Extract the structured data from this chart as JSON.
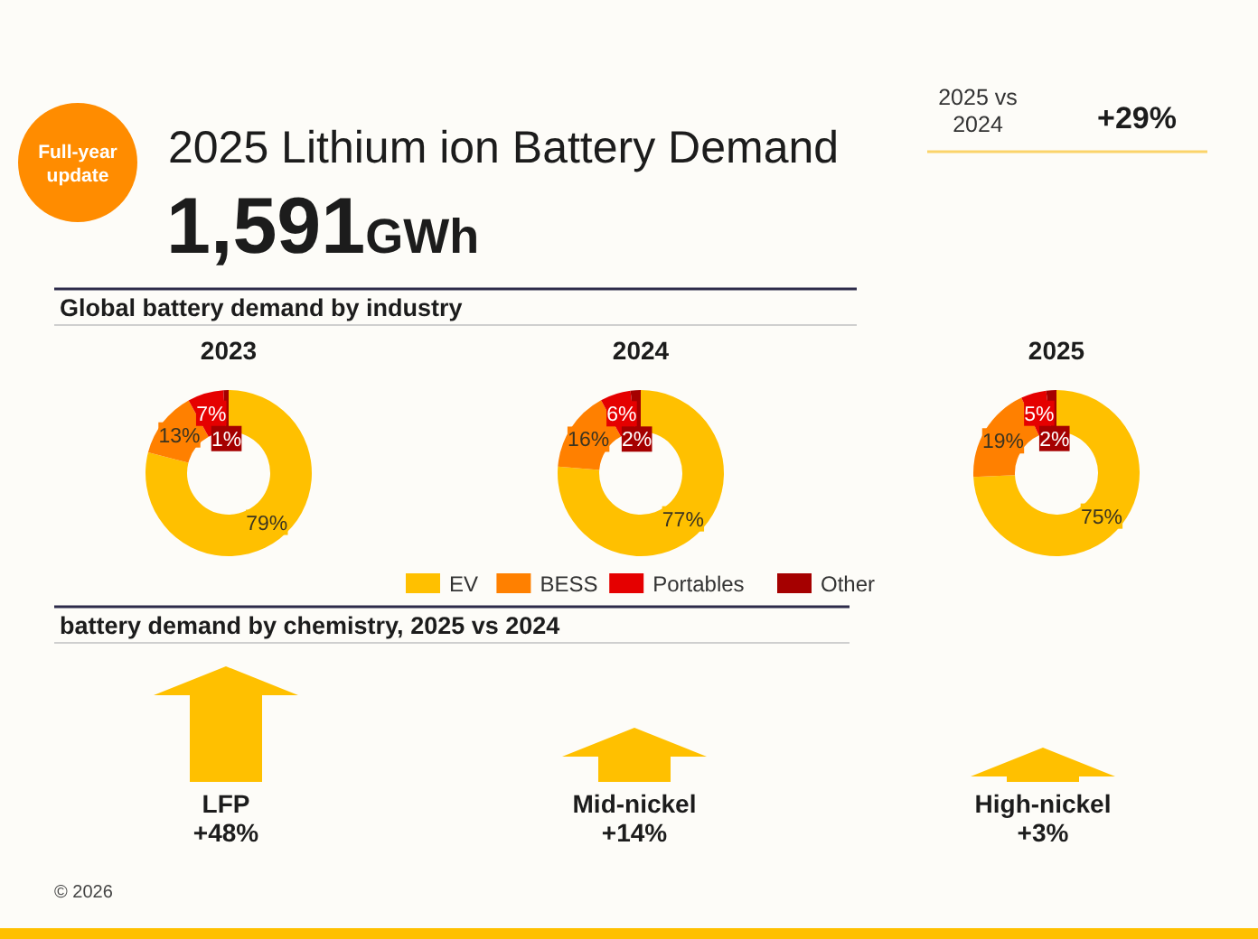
{
  "chart_data": [
    {
      "type": "other",
      "title": "2025 Lithium ion Battery Demand",
      "annotations": [
        "Full-year update",
        "1,591GWh",
        "2025 vs 2024",
        "+29%",
        "Global battery demand by industry"
      ]
    },
    {
      "type": "donut",
      "title": "2023",
      "values": [
        79,
        13,
        7,
        1
      ],
      "colors": [
        "#ffc000",
        "#ff8000",
        "#e50000",
        "#a50000"
      ],
      "value_labels": [
        "79%",
        "13%",
        "7%",
        "1%"
      ]
    },
    {
      "type": "donut",
      "title": "2024",
      "categories": [
        "EV",
        "BESS",
        "Portables",
        "Other"
      ],
      "values": [
        77,
        16,
        6,
        2
      ],
      "colors": [
        "#ffc000",
        "#ff8000",
        "#e50000",
        "#a50000"
      ],
      "value_labels": [
        "77%",
        "16%",
        "6%",
        "2%"
      ],
      "legend": "bottom"
    },
    {
      "type": "donut",
      "title": "2025",
      "values": [
        75,
        19,
        5,
        2
      ],
      "colors": [
        "#ffc000",
        "#ff8000",
        "#e50000",
        "#a50000"
      ],
      "value_labels": [
        "75%",
        "19%",
        "5%",
        "2%"
      ]
    },
    {
      "type": "bar",
      "title": "battery demand by chemistry, 2025 vs 2024",
      "categories": [
        "LFP",
        "Mid-nickel",
        "High-nickel"
      ],
      "values": [
        48,
        14,
        3
      ],
      "value_labels": [
        "+48%",
        "+14%",
        "+3%"
      ],
      "color": "#ffc000",
      "annotations": [
        "© 2026"
      ]
    }
  ]
}
